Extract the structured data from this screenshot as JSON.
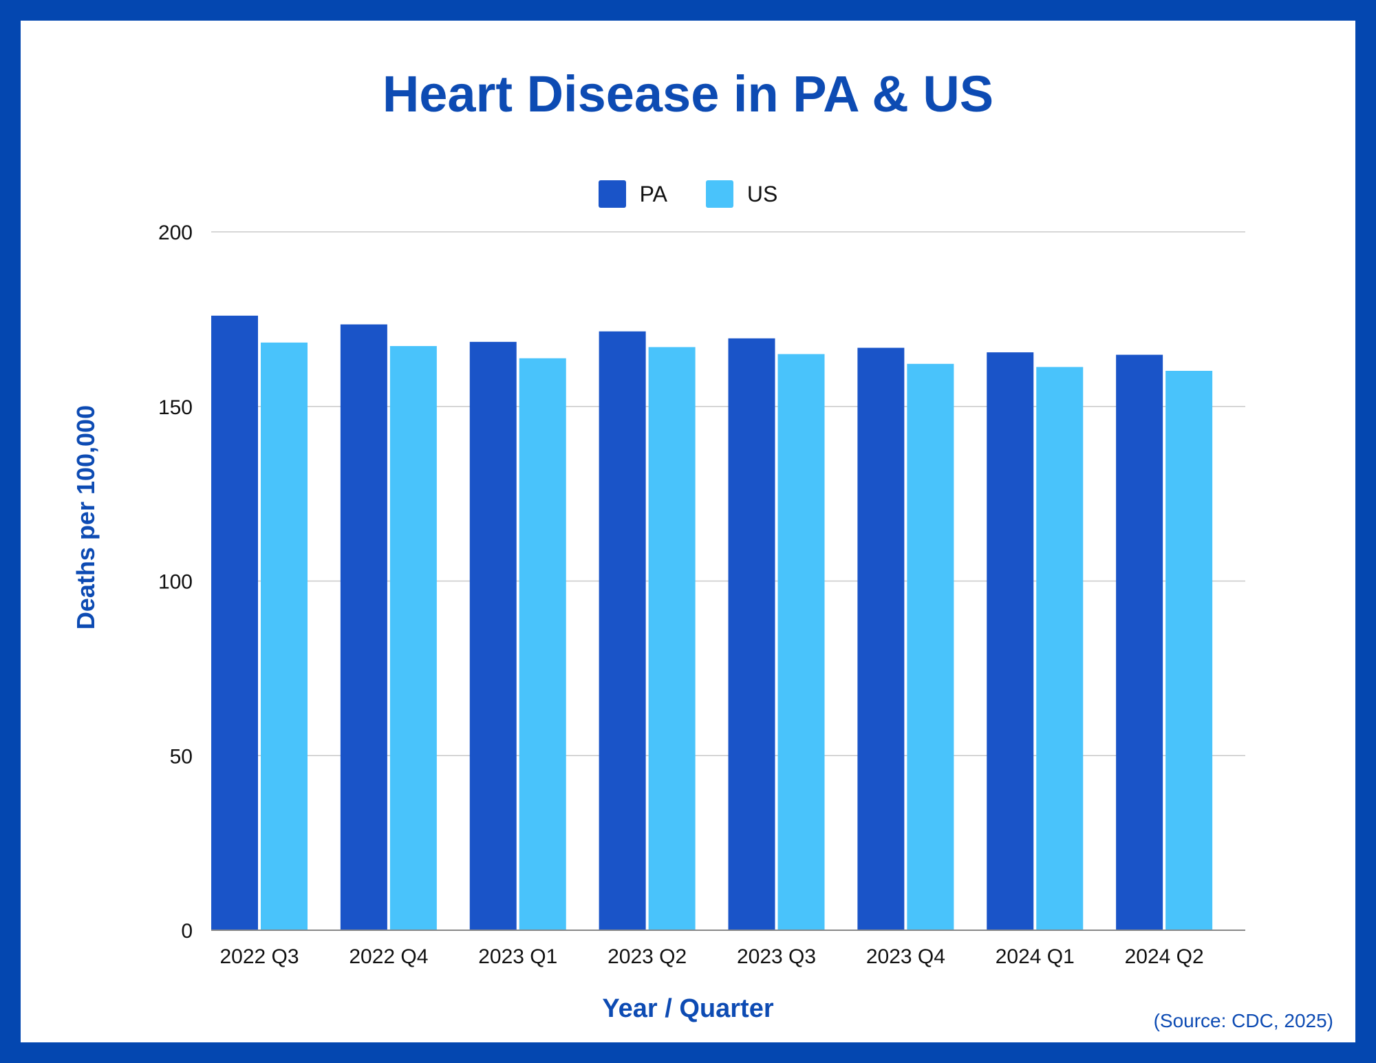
{
  "colors": {
    "border": "#0447b0",
    "title": "#0d4bb3",
    "pa": "#1a54c8",
    "us": "#49c3fb",
    "grid": "#c8c8c8",
    "axis": "#888888"
  },
  "source": "(Source: CDC, 2025)",
  "chart_data": {
    "type": "bar",
    "title": "Heart Disease in PA & US",
    "xlabel": "Year / Quarter",
    "ylabel": "Deaths per 100,000",
    "ylim": [
      0,
      200
    ],
    "yticks": [
      0,
      50,
      100,
      150,
      200
    ],
    "grid": true,
    "legend_position": "top-center",
    "categories": [
      "2022 Q3",
      "2022 Q4",
      "2023 Q1",
      "2023 Q2",
      "2023 Q3",
      "2023 Q4",
      "2024 Q1",
      "2024 Q2"
    ],
    "series": [
      {
        "name": "PA",
        "color": "#1a54c8",
        "values": [
          176.0,
          173.5,
          168.5,
          171.5,
          169.5,
          166.8,
          165.5,
          164.8
        ]
      },
      {
        "name": "US",
        "color": "#49c3fb",
        "values": [
          168.3,
          167.3,
          163.8,
          167.0,
          165.0,
          162.2,
          161.3,
          160.2
        ]
      }
    ]
  }
}
